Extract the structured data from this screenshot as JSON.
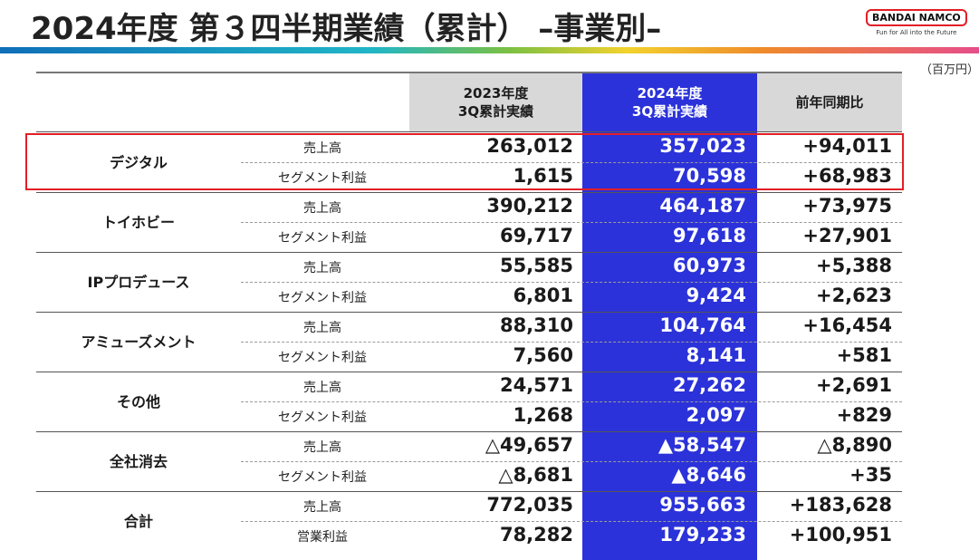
{
  "title": "2024年度 第３四半期業績（累計） –事業別–",
  "logo": {
    "name": "BANDAI NAMCO",
    "tagline": "Fun for All into the Future"
  },
  "unit": "（百万円）",
  "headers": {
    "prev": [
      "2023年度",
      "3Q累計実績"
    ],
    "curr": [
      "2024年度",
      "3Q累計実績"
    ],
    "yoy": "前年同期比"
  },
  "segments": [
    {
      "name": "デジタル",
      "rows": [
        {
          "metric": "売上高",
          "prev": "263,012",
          "curr": "357,023",
          "yoy": "+94,011"
        },
        {
          "metric": "セグメント利益",
          "prev": "1,615",
          "curr": "70,598",
          "yoy": "+68,983"
        }
      ]
    },
    {
      "name": "トイホビー",
      "rows": [
        {
          "metric": "売上高",
          "prev": "390,212",
          "curr": "464,187",
          "yoy": "+73,975"
        },
        {
          "metric": "セグメント利益",
          "prev": "69,717",
          "curr": "97,618",
          "yoy": "+27,901"
        }
      ]
    },
    {
      "name": "IPプロデュース",
      "rows": [
        {
          "metric": "売上高",
          "prev": "55,585",
          "curr": "60,973",
          "yoy": "+5,388"
        },
        {
          "metric": "セグメント利益",
          "prev": "6,801",
          "curr": "9,424",
          "yoy": "+2,623"
        }
      ]
    },
    {
      "name": "アミューズメント",
      "rows": [
        {
          "metric": "売上高",
          "prev": "88,310",
          "curr": "104,764",
          "yoy": "+16,454"
        },
        {
          "metric": "セグメント利益",
          "prev": "7,560",
          "curr": "8,141",
          "yoy": "+581"
        }
      ]
    },
    {
      "name": "その他",
      "rows": [
        {
          "metric": "売上高",
          "prev": "24,571",
          "curr": "27,262",
          "yoy": "+2,691"
        },
        {
          "metric": "セグメント利益",
          "prev": "1,268",
          "curr": "2,097",
          "yoy": "+829"
        }
      ]
    },
    {
      "name": "全社消去",
      "rows": [
        {
          "metric": "売上高",
          "prev": "△49,657",
          "curr": "▲58,547",
          "yoy": "△8,890"
        },
        {
          "metric": "セグメント利益",
          "prev": "△8,681",
          "curr": "▲8,646",
          "yoy": "+35"
        }
      ]
    },
    {
      "name": "合計",
      "rows": [
        {
          "metric": "売上高",
          "prev": "772,035",
          "curr": "955,663",
          "yoy": "+183,628"
        },
        {
          "metric": "営業利益",
          "prev": "78,282",
          "curr": "179,233",
          "yoy": "+100,951"
        }
      ]
    }
  ],
  "colors": {
    "highlight_column": "#2b32d9",
    "header_grey": "#d8d8d8",
    "highlight_box": "#e21e26"
  }
}
